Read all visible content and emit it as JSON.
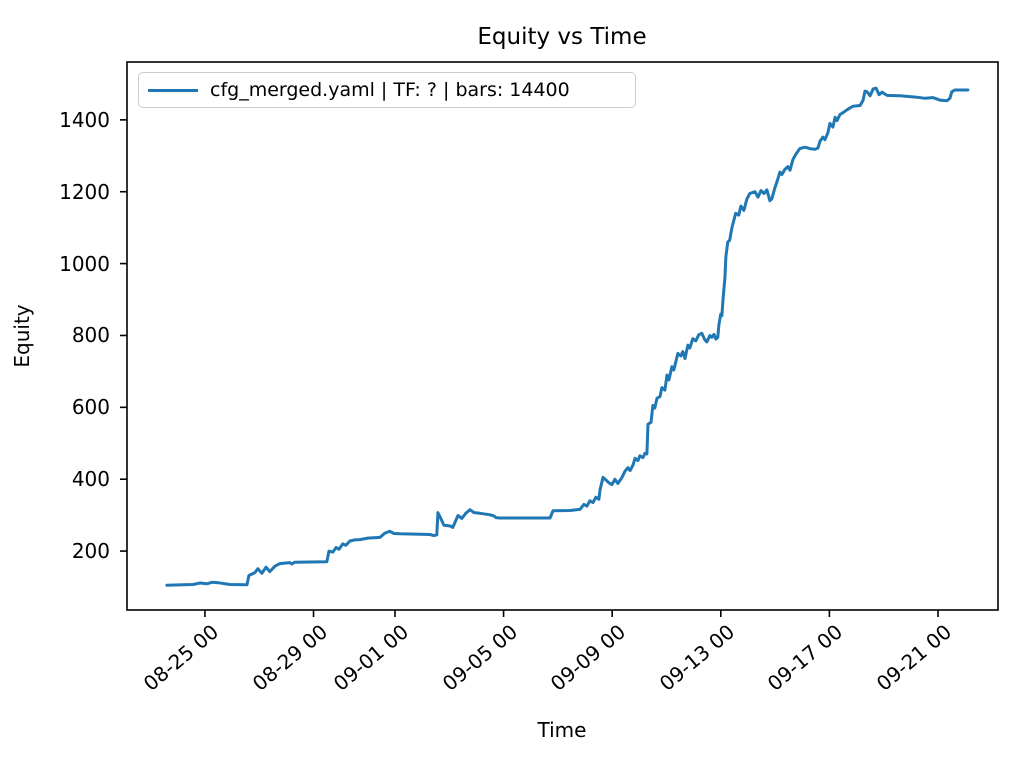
{
  "title": "Equity vs Time",
  "axes": {
    "xlabel": "Time",
    "ylabel": "Equity"
  },
  "legend": {
    "label": "cfg_merged.yaml | TF: ? | bars: 14400",
    "line_color": "#1f77b4",
    "position": "upper left"
  },
  "chart_data": {
    "type": "line",
    "title": "Equity vs Time",
    "xlabel": "Time",
    "ylabel": "Equity",
    "grid": false,
    "legend_position": "upper left",
    "x_unit": "days since 08-22 00:00 (date ticks formatted MM-DD HH)",
    "xlim": [
      0.13,
      32.21
    ],
    "ylim": [
      36,
      1561
    ],
    "x_ticks": [
      {
        "d": 3,
        "label": "08-25 00"
      },
      {
        "d": 7,
        "label": "08-29 00"
      },
      {
        "d": 10,
        "label": "09-01 00"
      },
      {
        "d": 14,
        "label": "09-05 00"
      },
      {
        "d": 18,
        "label": "09-09 00"
      },
      {
        "d": 22,
        "label": "09-13 00"
      },
      {
        "d": 26,
        "label": "09-17 00"
      },
      {
        "d": 30,
        "label": "09-21 00"
      }
    ],
    "y_ticks": [
      200,
      400,
      600,
      800,
      1000,
      1200,
      1400
    ],
    "series": [
      {
        "name": "cfg_merged.yaml | TF: ? | bars: 14400",
        "color": "#1f77b4",
        "points": [
          [
            1.6,
            105
          ],
          [
            2.2,
            106
          ],
          [
            2.56,
            107
          ],
          [
            2.82,
            111
          ],
          [
            3.07,
            109
          ],
          [
            3.26,
            113
          ],
          [
            3.48,
            112
          ],
          [
            3.92,
            107
          ],
          [
            4.55,
            106
          ],
          [
            4.62,
            132
          ],
          [
            4.84,
            140
          ],
          [
            4.95,
            151
          ],
          [
            5.1,
            138
          ],
          [
            5.25,
            155
          ],
          [
            5.39,
            143
          ],
          [
            5.58,
            158
          ],
          [
            5.76,
            165
          ],
          [
            6.13,
            168
          ],
          [
            6.2,
            164
          ],
          [
            6.31,
            169
          ],
          [
            7.49,
            170
          ],
          [
            7.57,
            200
          ],
          [
            7.71,
            197
          ],
          [
            7.83,
            210
          ],
          [
            7.94,
            205
          ],
          [
            8.08,
            220
          ],
          [
            8.19,
            216
          ],
          [
            8.34,
            228
          ],
          [
            8.52,
            231
          ],
          [
            8.71,
            232
          ],
          [
            9.0,
            236
          ],
          [
            9.45,
            238
          ],
          [
            9.63,
            250
          ],
          [
            9.81,
            255
          ],
          [
            9.96,
            249
          ],
          [
            10.18,
            248
          ],
          [
            10.92,
            247
          ],
          [
            11.29,
            246
          ],
          [
            11.43,
            243
          ],
          [
            11.54,
            245
          ],
          [
            11.58,
            307
          ],
          [
            11.69,
            290
          ],
          [
            11.8,
            272
          ],
          [
            12.02,
            270
          ],
          [
            12.13,
            266
          ],
          [
            12.32,
            299
          ],
          [
            12.46,
            291
          ],
          [
            12.61,
            305
          ],
          [
            12.76,
            315
          ],
          [
            12.91,
            307
          ],
          [
            13.13,
            305
          ],
          [
            13.5,
            301
          ],
          [
            13.64,
            298
          ],
          [
            13.72,
            293
          ],
          [
            13.87,
            292
          ],
          [
            15.71,
            292
          ],
          [
            15.82,
            312
          ],
          [
            16.44,
            313
          ],
          [
            16.81,
            316
          ],
          [
            16.96,
            330
          ],
          [
            17.07,
            325
          ],
          [
            17.18,
            340
          ],
          [
            17.29,
            335
          ],
          [
            17.4,
            350
          ],
          [
            17.51,
            344
          ],
          [
            17.55,
            370
          ],
          [
            17.66,
            405
          ],
          [
            17.77,
            398
          ],
          [
            17.88,
            390
          ],
          [
            17.99,
            385
          ],
          [
            18.1,
            400
          ],
          [
            18.21,
            388
          ],
          [
            18.36,
            405
          ],
          [
            18.47,
            422
          ],
          [
            18.58,
            432
          ],
          [
            18.66,
            424
          ],
          [
            18.77,
            440
          ],
          [
            18.84,
            458
          ],
          [
            18.95,
            452
          ],
          [
            19.02,
            465
          ],
          [
            19.13,
            460
          ],
          [
            19.21,
            472
          ],
          [
            19.28,
            470
          ],
          [
            19.32,
            553
          ],
          [
            19.43,
            558
          ],
          [
            19.5,
            605
          ],
          [
            19.57,
            598
          ],
          [
            19.65,
            625
          ],
          [
            19.76,
            630
          ],
          [
            19.83,
            655
          ],
          [
            19.94,
            648
          ],
          [
            20.02,
            690
          ],
          [
            20.09,
            676
          ],
          [
            20.2,
            713
          ],
          [
            20.27,
            704
          ],
          [
            20.42,
            750
          ],
          [
            20.53,
            743
          ],
          [
            20.6,
            755
          ],
          [
            20.68,
            736
          ],
          [
            20.79,
            773
          ],
          [
            20.86,
            765
          ],
          [
            20.97,
            791
          ],
          [
            21.08,
            785
          ],
          [
            21.19,
            802
          ],
          [
            21.3,
            806
          ],
          [
            21.41,
            788
          ],
          [
            21.49,
            782
          ],
          [
            21.6,
            800
          ],
          [
            21.67,
            795
          ],
          [
            21.75,
            803
          ],
          [
            21.82,
            790
          ],
          [
            21.89,
            795
          ],
          [
            21.93,
            830
          ],
          [
            22.0,
            860
          ],
          [
            22.04,
            855
          ],
          [
            22.08,
            900
          ],
          [
            22.15,
            960
          ],
          [
            22.19,
            1020
          ],
          [
            22.26,
            1060
          ],
          [
            22.33,
            1065
          ],
          [
            22.41,
            1100
          ],
          [
            22.48,
            1120
          ],
          [
            22.55,
            1140
          ],
          [
            22.66,
            1135
          ],
          [
            22.74,
            1160
          ],
          [
            22.85,
            1148
          ],
          [
            22.96,
            1180
          ],
          [
            23.07,
            1195
          ],
          [
            23.26,
            1200
          ],
          [
            23.37,
            1185
          ],
          [
            23.48,
            1203
          ],
          [
            23.59,
            1195
          ],
          [
            23.7,
            1205
          ],
          [
            23.81,
            1175
          ],
          [
            23.88,
            1180
          ],
          [
            23.99,
            1210
          ],
          [
            24.1,
            1235
          ],
          [
            24.18,
            1255
          ],
          [
            24.25,
            1248
          ],
          [
            24.36,
            1262
          ],
          [
            24.47,
            1270
          ],
          [
            24.55,
            1260
          ],
          [
            24.66,
            1290
          ],
          [
            24.77,
            1305
          ],
          [
            24.91,
            1320
          ],
          [
            25.1,
            1324
          ],
          [
            25.28,
            1320
          ],
          [
            25.47,
            1318
          ],
          [
            25.58,
            1322
          ],
          [
            25.65,
            1340
          ],
          [
            25.76,
            1352
          ],
          [
            25.84,
            1345
          ],
          [
            25.95,
            1365
          ],
          [
            26.02,
            1390
          ],
          [
            26.13,
            1380
          ],
          [
            26.21,
            1407
          ],
          [
            26.28,
            1398
          ],
          [
            26.39,
            1415
          ],
          [
            26.5,
            1420
          ],
          [
            26.65,
            1428
          ],
          [
            26.87,
            1438
          ],
          [
            27.13,
            1440
          ],
          [
            27.24,
            1455
          ],
          [
            27.31,
            1480
          ],
          [
            27.39,
            1478
          ],
          [
            27.5,
            1467
          ],
          [
            27.61,
            1486
          ],
          [
            27.72,
            1488
          ],
          [
            27.83,
            1470
          ],
          [
            27.94,
            1477
          ],
          [
            28.12,
            1468
          ],
          [
            28.6,
            1467
          ],
          [
            29.22,
            1463
          ],
          [
            29.52,
            1460
          ],
          [
            29.81,
            1462
          ],
          [
            30.07,
            1455
          ],
          [
            30.33,
            1453
          ],
          [
            30.44,
            1460
          ],
          [
            30.51,
            1478
          ],
          [
            30.62,
            1483
          ],
          [
            31.1,
            1483
          ]
        ]
      }
    ]
  }
}
